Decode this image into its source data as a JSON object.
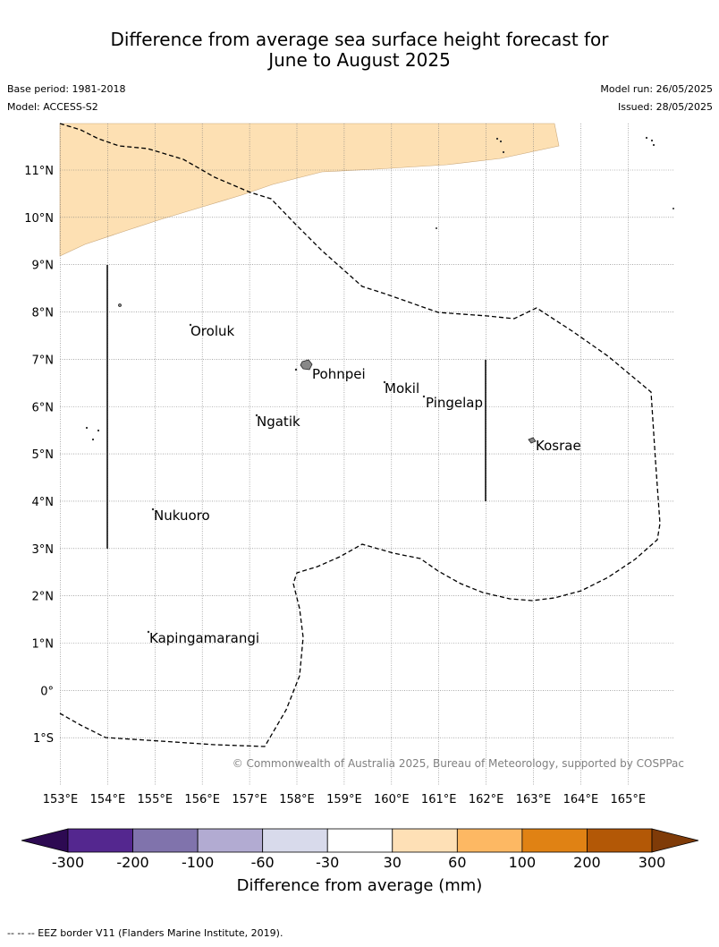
{
  "header": {
    "title_line1": "Difference from average sea surface height forecast for",
    "title_line2": "June to August 2025",
    "base_period": "Base period: 1981-2018",
    "model": "Model: ACCESS-S2",
    "model_run": "Model run: 26/05/2025",
    "issued": "Issued: 28/05/2025"
  },
  "map": {
    "lat_labels": [
      "11°N",
      "10°N",
      "9°N",
      "8°N",
      "7°N",
      "6°N",
      "5°N",
      "4°N",
      "3°N",
      "2°N",
      "1°N",
      "0°",
      "1°S"
    ],
    "lon_labels": [
      "153°E",
      "154°E",
      "155°E",
      "156°E",
      "157°E",
      "158°E",
      "159°E",
      "160°E",
      "161°E",
      "162°E",
      "163°E",
      "164°E",
      "165°E"
    ],
    "places": [
      "Oroluk",
      "Pohnpei",
      "Mokil",
      "Pingelap",
      "Ngatik",
      "Kosrae",
      "Nukuoro",
      "Kapingamarangi"
    ],
    "copyright": "© Commonwealth of Australia 2025, Bureau of Meteorology, supported by COSPPac",
    "anomaly_fill_color": "#fde0b3"
  },
  "legend": {
    "ticks": [
      "-300",
      "-200",
      "-100",
      "-60",
      "-30",
      "30",
      "60",
      "100",
      "200",
      "300"
    ],
    "colors": [
      "#2d0a52",
      "#54278f",
      "#8073ac",
      "#b2abd2",
      "#d8daeb",
      "#ffffff",
      "#fee0b6",
      "#fdb863",
      "#e08214",
      "#b35806",
      "#7f3b08"
    ],
    "label": "Difference from average (mm)"
  },
  "footnote": "--  --  -- EEZ border V11 (Flanders Marine Institute, 2019)."
}
